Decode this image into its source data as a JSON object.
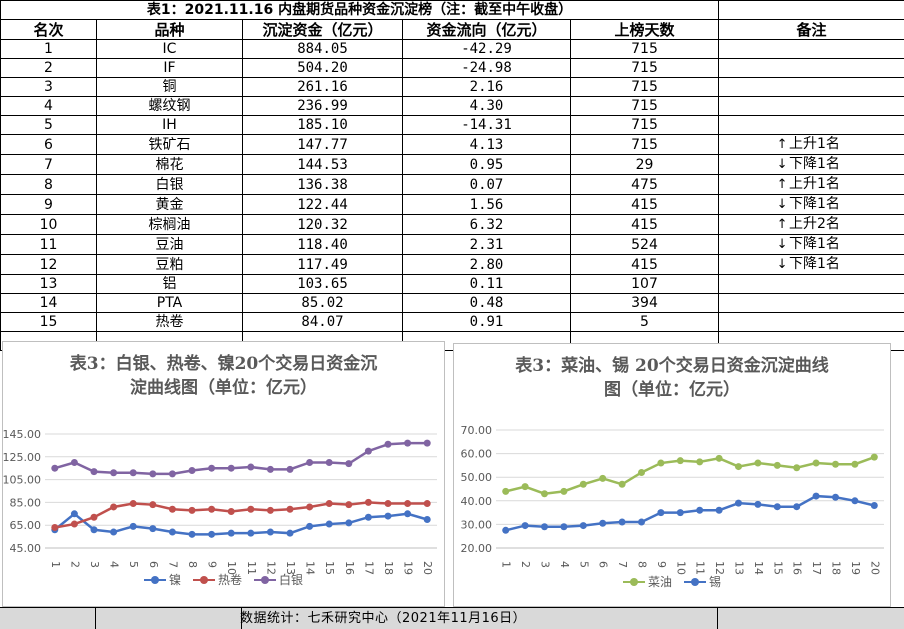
{
  "table": {
    "title": "表1：2021.11.16 内盘期货品种资金沉淀榜（注：截至中午收盘）",
    "headers": [
      "名次",
      "品种",
      "沉淀资金（亿元）",
      "资金流向（亿元）",
      "上榜天数",
      "备注"
    ],
    "rows": [
      {
        "rank": "1",
        "name": "IC",
        "fund": "884.05",
        "flow": "-42.29",
        "days": "715",
        "note": "",
        "arrow": ""
      },
      {
        "rank": "2",
        "name": "IF",
        "fund": "504.20",
        "flow": "-24.98",
        "days": "715",
        "note": "",
        "arrow": ""
      },
      {
        "rank": "3",
        "name": "铜",
        "fund": "261.16",
        "flow": "2.16",
        "days": "715",
        "note": "",
        "arrow": ""
      },
      {
        "rank": "4",
        "name": "螺纹钢",
        "fund": "236.99",
        "flow": "4.30",
        "days": "715",
        "note": "",
        "arrow": ""
      },
      {
        "rank": "5",
        "name": "IH",
        "fund": "185.10",
        "flow": "-14.31",
        "days": "715",
        "note": "",
        "arrow": ""
      },
      {
        "rank": "6",
        "name": "铁矿石",
        "fund": "147.77",
        "flow": "4.13",
        "days": "715",
        "note": "上升1名",
        "arrow": "↑"
      },
      {
        "rank": "7",
        "name": "棉花",
        "fund": "144.53",
        "flow": "0.95",
        "days": "29",
        "note": "下降1名",
        "arrow": "↓"
      },
      {
        "rank": "8",
        "name": "白银",
        "fund": "136.38",
        "flow": "0.07",
        "days": "475",
        "note": "上升1名",
        "arrow": "↑"
      },
      {
        "rank": "9",
        "name": "黄金",
        "fund": "122.44",
        "flow": "1.56",
        "days": "415",
        "note": "下降1名",
        "arrow": "↓"
      },
      {
        "rank": "10",
        "name": "棕榈油",
        "fund": "120.32",
        "flow": "6.32",
        "days": "415",
        "note": "上升2名",
        "arrow": "↑"
      },
      {
        "rank": "11",
        "name": "豆油",
        "fund": "118.40",
        "flow": "2.31",
        "days": "524",
        "note": "下降1名",
        "arrow": "↓"
      },
      {
        "rank": "12",
        "name": "豆粕",
        "fund": "117.49",
        "flow": "2.80",
        "days": "415",
        "note": "下降1名",
        "arrow": "↓"
      },
      {
        "rank": "13",
        "name": "铝",
        "fund": "103.65",
        "flow": "0.11",
        "days": "107",
        "note": "",
        "arrow": ""
      },
      {
        "rank": "14",
        "name": "PTA",
        "fund": "85.02",
        "flow": "0.48",
        "days": "394",
        "note": "",
        "arrow": ""
      },
      {
        "rank": "15",
        "name": "热卷",
        "fund": "84.07",
        "flow": "0.91",
        "days": "5",
        "note": "",
        "arrow": ""
      }
    ]
  },
  "chart_data": [
    {
      "type": "line",
      "title": "表3：白银、热卷、镍20个交易日资金沉淀曲线图（单位：亿元）",
      "title_lines": [
        "表3：白银、热卷、镍20个交易日资金沉",
        "淀曲线图（单位：亿元）"
      ],
      "categories": [
        "1",
        "2",
        "3",
        "4",
        "5",
        "6",
        "7",
        "8",
        "9",
        "10",
        "11",
        "12",
        "13",
        "14",
        "15",
        "16",
        "17",
        "18",
        "19",
        "20"
      ],
      "ylim": [
        45,
        145
      ],
      "yticks": [
        "45.00",
        "65.00",
        "85.00",
        "105.00",
        "125.00",
        "145.00"
      ],
      "ytick_values": [
        45,
        65,
        85,
        105,
        125,
        145
      ],
      "grid": true,
      "legend_position": "bottom",
      "series": [
        {
          "name": "镍",
          "color": "#4472c4",
          "values": [
            61,
            75,
            61,
            59,
            64,
            62,
            59,
            57,
            57,
            58,
            58,
            59,
            58,
            64,
            66,
            67,
            72,
            73,
            75,
            70
          ]
        },
        {
          "name": "热卷",
          "color": "#c0504d",
          "values": [
            63,
            66,
            72,
            81,
            84,
            83,
            79,
            78,
            79,
            77,
            79,
            78,
            79,
            81,
            84,
            83,
            85,
            84,
            84,
            84
          ]
        },
        {
          "name": "白银",
          "color": "#8064a2",
          "values": [
            115,
            120,
            112,
            111,
            111,
            110,
            110,
            113,
            115,
            115,
            116,
            114,
            114,
            120,
            120,
            119,
            130,
            136,
            137,
            137
          ]
        }
      ]
    },
    {
      "type": "line",
      "title": "表3：菜油、锡 20个交易日资金沉淀曲线图（单位：亿元）",
      "title_lines": [
        "表3：菜油、锡 20个交易日资金沉淀曲线",
        "图（单位：亿元）"
      ],
      "categories": [
        "1",
        "2",
        "3",
        "4",
        "5",
        "6",
        "7",
        "8",
        "9",
        "10",
        "11",
        "12",
        "13",
        "14",
        "15",
        "16",
        "17",
        "18",
        "19",
        "20"
      ],
      "ylim": [
        20,
        70
      ],
      "yticks": [
        "20.00",
        "30.00",
        "40.00",
        "50.00",
        "60.00",
        "70.00"
      ],
      "ytick_values": [
        20,
        30,
        40,
        50,
        60,
        70
      ],
      "grid": true,
      "legend_position": "bottom",
      "series": [
        {
          "name": "菜油",
          "color": "#9bbb59",
          "values": [
            44,
            46,
            43,
            44,
            47,
            49.5,
            47,
            52,
            56,
            57,
            56.5,
            58,
            54.5,
            56,
            55,
            54,
            56,
            55.5,
            55.5,
            58.5
          ]
        },
        {
          "name": "锡",
          "color": "#4472c4",
          "values": [
            27.5,
            29.5,
            29,
            29,
            29.5,
            30.5,
            31,
            31,
            35,
            35,
            36,
            36,
            39,
            38.5,
            37.5,
            37.5,
            42,
            41.5,
            40,
            38
          ]
        }
      ]
    }
  ],
  "footer": {
    "text": "数据统计：七禾研究中心（2021年11月16日）"
  }
}
